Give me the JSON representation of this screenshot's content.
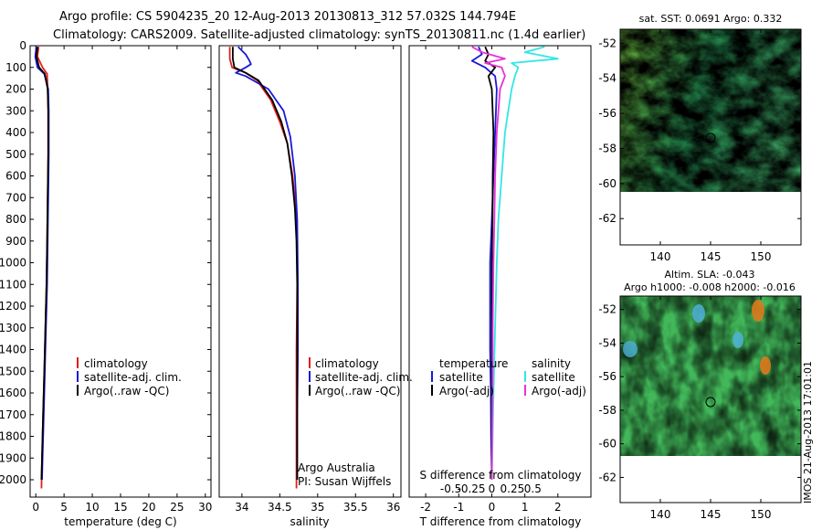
{
  "header": {
    "line1": "Argo profile: CS 5904235_20 12-Aug-2013 20130813_312 57.032S 144.794E",
    "line2": "Climatology: CARS2009. Satellite-adjusted climatology: synTS_20130811.nc (1.4d earlier)"
  },
  "watermark": "IMOS 21-Aug-2013 17:01:01",
  "colors": {
    "climatology": "#e0201b",
    "satellite": "#1a1ad8",
    "argo": "#000000",
    "salinity_satellite": "#33e6e6",
    "salinity_argo": "#e633d8"
  },
  "chart_data": [
    {
      "id": "temperature",
      "type": "line",
      "xlabel": "temperature (deg C)",
      "ylabel": "",
      "xlim": [
        -1,
        31
      ],
      "ylim": [
        2080,
        0
      ],
      "xticks": [
        0,
        5,
        10,
        15,
        20,
        25,
        30
      ],
      "yticks": [
        0,
        100,
        200,
        300,
        400,
        500,
        600,
        700,
        800,
        900,
        1000,
        1100,
        1200,
        1300,
        1400,
        1500,
        1600,
        1700,
        1800,
        1900,
        2000
      ],
      "legend": [
        "climatology",
        "satellite-adj. clim.",
        "Argo(..raw -QC)"
      ],
      "series": [
        {
          "name": "climatology",
          "color_key": "climatology",
          "x": [
            0.5,
            0.3,
            1.2,
            2.0,
            2.1,
            2.2,
            2.2,
            2.1,
            2.0,
            1.9,
            1.7,
            1.5,
            1.3,
            1.1,
            1.0
          ],
          "y": [
            5,
            50,
            100,
            130,
            200,
            300,
            500,
            700,
            900,
            1100,
            1300,
            1500,
            1700,
            1900,
            2040
          ]
        },
        {
          "name": "satellite-adj. clim.",
          "color_key": "satellite",
          "x": [
            0.1,
            -0.1,
            0.3,
            1.5,
            2.2,
            2.3,
            2.3,
            2.2,
            2.1,
            2.0,
            1.8,
            1.6,
            1.4,
            1.2,
            1.1
          ],
          "y": [
            5,
            50,
            100,
            130,
            200,
            300,
            500,
            700,
            900,
            1100,
            1300,
            1500,
            1700,
            1900,
            2000
          ]
        },
        {
          "name": "Argo(..raw -QC)",
          "color_key": "argo",
          "x": [
            0.3,
            0.1,
            0.6,
            1.6,
            2.1,
            2.2,
            2.2,
            2.1,
            2.0,
            1.9,
            1.7,
            1.5,
            1.3,
            1.1,
            1.0
          ],
          "y": [
            5,
            50,
            100,
            130,
            200,
            300,
            500,
            700,
            900,
            1100,
            1300,
            1500,
            1700,
            1900,
            2000
          ]
        }
      ]
    },
    {
      "id": "salinity",
      "type": "line",
      "xlabel": "salinity",
      "ylabel": "",
      "xlim": [
        33.7,
        36.1
      ],
      "ylim": [
        2080,
        0
      ],
      "xticks": [
        34,
        34.5,
        35,
        35.5,
        36
      ],
      "xticklabels": [
        "34",
        "34.5",
        "35",
        "35.5",
        "36"
      ],
      "legend": [
        "climatology",
        "satellite-adj. clim.",
        "Argo(..raw -QC)"
      ],
      "annotation": [
        "Argo Australia",
        "PI: Susan Wijffels"
      ],
      "series": [
        {
          "name": "climatology",
          "color_key": "climatology",
          "x": [
            33.84,
            33.84,
            33.87,
            34.05,
            34.2,
            34.38,
            34.5,
            34.6,
            34.67,
            34.71,
            34.73,
            34.73,
            34.72,
            34.72,
            34.72,
            34.72
          ],
          "y": [
            5,
            60,
            100,
            125,
            160,
            250,
            350,
            450,
            600,
            750,
            900,
            1100,
            1400,
            1700,
            2000,
            2040
          ]
        },
        {
          "name": "satellite-adj. clim.",
          "color_key": "satellite",
          "x": [
            33.95,
            34.05,
            34.1,
            34.12,
            34.05,
            33.92,
            34.05,
            34.35,
            34.55,
            34.64,
            34.7,
            34.73,
            34.74,
            34.74,
            34.73,
            34.73
          ],
          "y": [
            5,
            40,
            70,
            85,
            100,
            125,
            140,
            200,
            300,
            420,
            600,
            800,
            1100,
            1400,
            1700,
            2000
          ]
        },
        {
          "name": "Argo(..raw -QC)",
          "color_key": "argo",
          "x": [
            33.88,
            33.88,
            33.9,
            34.05,
            34.22,
            34.4,
            34.52,
            34.6,
            34.66,
            34.7,
            34.72,
            34.73,
            34.73,
            34.73,
            34.73
          ],
          "y": [
            5,
            60,
            100,
            125,
            160,
            250,
            350,
            450,
            600,
            750,
            900,
            1100,
            1400,
            1700,
            2000
          ]
        }
      ]
    },
    {
      "id": "difference",
      "type": "line",
      "xlabel": "T difference from climatology",
      "xlabel_top": "S difference from climatology",
      "ylabel": "",
      "xlim": [
        -2.5,
        3
      ],
      "ylim": [
        2080,
        0
      ],
      "xticks": [
        -2,
        -1,
        0,
        1,
        2
      ],
      "s_axis": {
        "ticks": [
          -0.5,
          -0.25,
          0,
          0.25,
          0.5
        ],
        "labels": [
          "-0.5",
          "-0.25",
          "0",
          "0.25",
          "0.5"
        ]
      },
      "legend_temperature": {
        "title": "temperature",
        "items": [
          "satellite",
          "Argo(-adj)"
        ]
      },
      "legend_salinity": {
        "title": "salinity",
        "items": [
          "satellite",
          "Argo(-adj)"
        ]
      },
      "series": [
        {
          "name": "temperature satellite",
          "color_key": "satellite",
          "x": [
            -0.4,
            -0.3,
            -0.6,
            -0.2,
            0.1,
            0.15,
            0.1,
            0.05,
            0.0,
            -0.05,
            -0.05,
            -0.05,
            -0.03,
            -0.02,
            0.0
          ],
          "y": [
            5,
            40,
            70,
            100,
            140,
            200,
            400,
            600,
            800,
            1000,
            1200,
            1400,
            1600,
            1800,
            2000
          ]
        },
        {
          "name": "temperature Argo(-adj)",
          "color_key": "argo",
          "x": [
            -0.2,
            -0.1,
            -0.2,
            0.1,
            -0.1,
            0.0,
            0.05,
            0.03,
            0.02,
            0.0,
            0.0,
            0.0,
            0.0,
            0.0,
            0.0
          ],
          "y": [
            5,
            40,
            70,
            100,
            140,
            200,
            400,
            600,
            800,
            1000,
            1200,
            1400,
            1600,
            1800,
            2000
          ]
        },
        {
          "name": "salinity satellite",
          "color_key": "salinity_satellite",
          "x": [
            1.6,
            1.0,
            2.0,
            0.6,
            0.8,
            0.7,
            0.6,
            0.5,
            0.4,
            0.3,
            0.2,
            0.15,
            0.1,
            0.05,
            0.0
          ],
          "y": [
            5,
            30,
            60,
            80,
            100,
            140,
            200,
            300,
            400,
            600,
            800,
            1000,
            1300,
            1600,
            2000
          ]
        },
        {
          "name": "salinity Argo(-adj)",
          "color_key": "salinity_argo",
          "x": [
            -0.6,
            -0.3,
            0.4,
            -0.2,
            0.3,
            0.4,
            0.25,
            0.2,
            0.15,
            0.1,
            0.08,
            0.05,
            0.03,
            0.02,
            0.0
          ],
          "y": [
            5,
            30,
            60,
            80,
            100,
            140,
            200,
            300,
            400,
            600,
            800,
            1000,
            1300,
            1600,
            2000
          ]
        }
      ]
    },
    {
      "id": "map_sst",
      "type": "heatmap",
      "title": "sat. SST: 0.0691  Argo: 0.332",
      "xlim": [
        136,
        154
      ],
      "ylim": [
        -63.5,
        -51.2
      ],
      "xticks": [
        140,
        145,
        150
      ],
      "yticks": [
        -52,
        -54,
        -56,
        -58,
        -60,
        -62
      ],
      "data_extent_lat": [
        -60,
        -51.2
      ],
      "marker": {
        "lon": 144.794,
        "lat": -57.032
      }
    },
    {
      "id": "map_sla",
      "type": "heatmap",
      "title_line1": "Altim. SLA: -0.043",
      "title_line2": "Argo h1000: -0.008 h2000: -0.016",
      "xlim": [
        136,
        154
      ],
      "ylim": [
        -63.5,
        -51.2
      ],
      "xticks": [
        140,
        145,
        150
      ],
      "yticks": [
        -52,
        -54,
        -56,
        -58,
        -60,
        -62
      ],
      "data_extent_lat": [
        -60,
        -51.2
      ],
      "marker": {
        "lon": 144.794,
        "lat": -57.032
      }
    }
  ]
}
